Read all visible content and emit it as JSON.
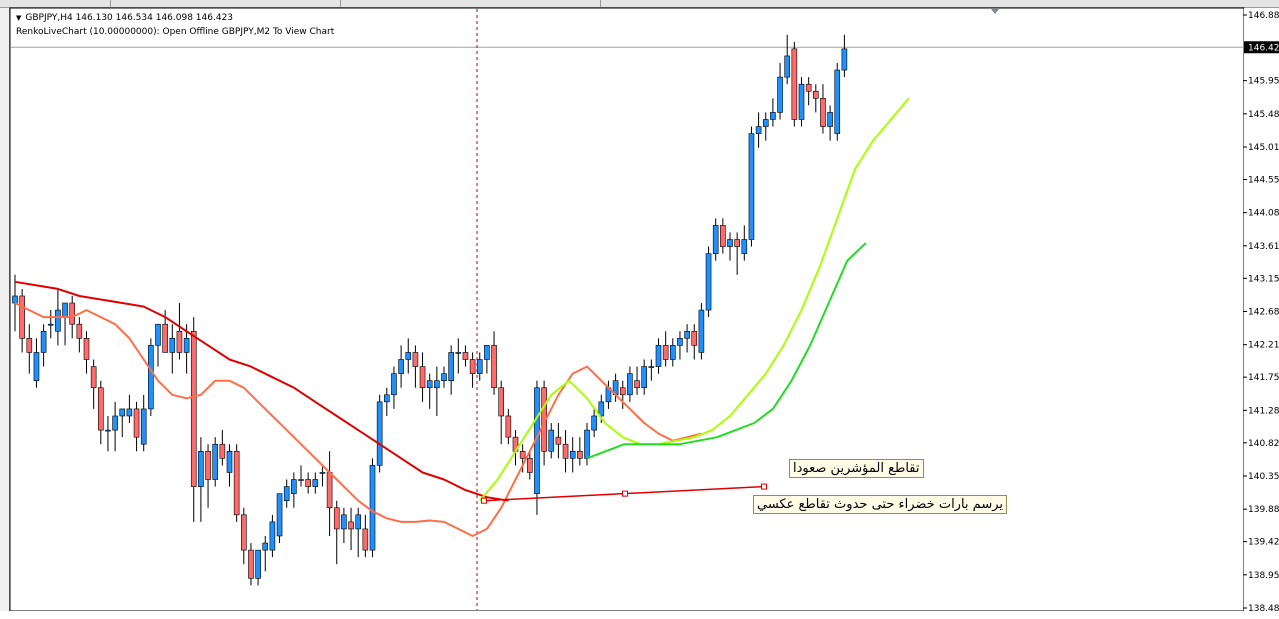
{
  "header": {
    "line1": "GBPJPY,H4  146.130 146.534 146.098 146.423",
    "line2": "RenkoLiveChart (10.00000000): Open Offline GBPJPY,M2 To View Chart"
  },
  "annotations": {
    "crossover_up": "تقاطع المؤشرين صعودا",
    "draw_green": "يرسم بارات خضراء حتى حدوث تقاطع عكسي"
  },
  "current_price": "146.423",
  "colors": {
    "bull_candle": "#1e90ff",
    "bear_candle": "#ff6b6b",
    "ma_fast": "#ff6e4a",
    "ma_slow": "#e00000",
    "ma_lime": "#aaff00",
    "ma_green": "#22dd22",
    "trendline": "#e00000",
    "vline": "#cc0000"
  },
  "chart_data": {
    "type": "candlestick",
    "symbol": "GBPJPY",
    "timeframe": "H4",
    "ylim": [
      138.48,
      146.88
    ],
    "y_ticks": [
      "146.880",
      "146.423",
      "145.950",
      "145.480",
      "145.010",
      "144.550",
      "144.080",
      "143.610",
      "143.150",
      "142.680",
      "142.210",
      "141.750",
      "141.280",
      "140.820",
      "140.350",
      "139.880",
      "139.420",
      "138.950",
      "138.480"
    ],
    "candles": [
      {
        "o": 142.8,
        "h": 143.2,
        "l": 142.4,
        "c": 142.9
      },
      {
        "o": 142.9,
        "h": 143.0,
        "l": 142.1,
        "c": 142.3
      },
      {
        "o": 142.3,
        "h": 142.5,
        "l": 141.8,
        "c": 142.1
      },
      {
        "o": 141.7,
        "h": 142.3,
        "l": 141.6,
        "c": 142.1
      },
      {
        "o": 142.1,
        "h": 142.5,
        "l": 141.9,
        "c": 142.4
      },
      {
        "o": 142.5,
        "h": 142.7,
        "l": 142.3,
        "c": 142.5
      },
      {
        "o": 142.4,
        "h": 143.0,
        "l": 142.2,
        "c": 142.7
      },
      {
        "o": 142.6,
        "h": 142.8,
        "l": 142.2,
        "c": 142.8
      },
      {
        "o": 142.8,
        "h": 142.9,
        "l": 142.3,
        "c": 142.5
      },
      {
        "o": 142.5,
        "h": 142.6,
        "l": 142.1,
        "c": 142.3
      },
      {
        "o": 142.3,
        "h": 142.4,
        "l": 141.8,
        "c": 142.0
      },
      {
        "o": 141.9,
        "h": 142.0,
        "l": 141.3,
        "c": 141.6
      },
      {
        "o": 141.6,
        "h": 141.7,
        "l": 140.8,
        "c": 141.0
      },
      {
        "o": 141.0,
        "h": 141.2,
        "l": 140.7,
        "c": 141.0
      },
      {
        "o": 141.0,
        "h": 141.4,
        "l": 140.7,
        "c": 141.2
      },
      {
        "o": 141.2,
        "h": 141.3,
        "l": 140.9,
        "c": 141.3
      },
      {
        "o": 141.2,
        "h": 141.5,
        "l": 141.1,
        "c": 141.3
      },
      {
        "o": 141.3,
        "h": 141.4,
        "l": 140.7,
        "c": 140.9
      },
      {
        "o": 140.8,
        "h": 141.5,
        "l": 140.7,
        "c": 141.3
      },
      {
        "o": 141.3,
        "h": 142.3,
        "l": 141.2,
        "c": 142.2
      },
      {
        "o": 142.2,
        "h": 142.5,
        "l": 141.9,
        "c": 142.5
      },
      {
        "o": 142.5,
        "h": 142.7,
        "l": 142.1,
        "c": 142.1
      },
      {
        "o": 142.1,
        "h": 142.5,
        "l": 141.8,
        "c": 142.3
      },
      {
        "o": 142.4,
        "h": 142.8,
        "l": 142.0,
        "c": 142.1
      },
      {
        "o": 142.1,
        "h": 142.5,
        "l": 141.8,
        "c": 142.3
      },
      {
        "o": 142.4,
        "h": 142.6,
        "l": 139.7,
        "c": 140.2
      },
      {
        "o": 140.2,
        "h": 140.9,
        "l": 139.7,
        "c": 140.7
      },
      {
        "o": 140.7,
        "h": 140.8,
        "l": 139.9,
        "c": 140.3
      },
      {
        "o": 140.3,
        "h": 140.9,
        "l": 140.2,
        "c": 140.8
      },
      {
        "o": 140.8,
        "h": 141.0,
        "l": 140.5,
        "c": 140.6
      },
      {
        "o": 140.4,
        "h": 140.8,
        "l": 140.2,
        "c": 140.7
      },
      {
        "o": 140.7,
        "h": 140.8,
        "l": 139.7,
        "c": 139.8
      },
      {
        "o": 139.8,
        "h": 139.9,
        "l": 139.1,
        "c": 139.3
      },
      {
        "o": 139.3,
        "h": 139.4,
        "l": 138.8,
        "c": 138.9
      },
      {
        "o": 138.9,
        "h": 139.3,
        "l": 138.8,
        "c": 139.3
      },
      {
        "o": 139.3,
        "h": 139.5,
        "l": 139.0,
        "c": 139.4
      },
      {
        "o": 139.3,
        "h": 139.8,
        "l": 139.2,
        "c": 139.7
      },
      {
        "o": 139.5,
        "h": 140.1,
        "l": 139.4,
        "c": 140.1
      },
      {
        "o": 140.0,
        "h": 140.3,
        "l": 139.9,
        "c": 140.2
      },
      {
        "o": 140.1,
        "h": 140.4,
        "l": 139.9,
        "c": 140.3
      },
      {
        "o": 140.3,
        "h": 140.5,
        "l": 140.2,
        "c": 140.3
      },
      {
        "o": 140.3,
        "h": 140.4,
        "l": 140.1,
        "c": 140.2
      },
      {
        "o": 140.2,
        "h": 140.4,
        "l": 140.1,
        "c": 140.3
      },
      {
        "o": 140.4,
        "h": 140.5,
        "l": 140.2,
        "c": 140.4
      },
      {
        "o": 140.4,
        "h": 140.7,
        "l": 139.5,
        "c": 139.9
      },
      {
        "o": 139.9,
        "h": 140.0,
        "l": 139.1,
        "c": 139.6
      },
      {
        "o": 139.6,
        "h": 139.9,
        "l": 139.4,
        "c": 139.8
      },
      {
        "o": 139.7,
        "h": 139.9,
        "l": 139.3,
        "c": 139.6
      },
      {
        "o": 139.6,
        "h": 139.9,
        "l": 139.2,
        "c": 139.8
      },
      {
        "o": 139.6,
        "h": 139.8,
        "l": 139.2,
        "c": 139.3
      },
      {
        "o": 139.3,
        "h": 140.6,
        "l": 139.2,
        "c": 140.5
      },
      {
        "o": 140.5,
        "h": 141.5,
        "l": 140.4,
        "c": 141.4
      },
      {
        "o": 141.4,
        "h": 141.6,
        "l": 141.2,
        "c": 141.5
      },
      {
        "o": 141.5,
        "h": 141.9,
        "l": 141.3,
        "c": 141.8
      },
      {
        "o": 141.8,
        "h": 142.2,
        "l": 141.6,
        "c": 142.0
      },
      {
        "o": 142.0,
        "h": 142.3,
        "l": 141.8,
        "c": 142.1
      },
      {
        "o": 142.1,
        "h": 142.2,
        "l": 141.6,
        "c": 141.9
      },
      {
        "o": 141.9,
        "h": 142.1,
        "l": 141.4,
        "c": 141.6
      },
      {
        "o": 141.6,
        "h": 141.8,
        "l": 141.3,
        "c": 141.7
      },
      {
        "o": 141.6,
        "h": 141.9,
        "l": 141.2,
        "c": 141.7
      },
      {
        "o": 141.7,
        "h": 141.9,
        "l": 141.6,
        "c": 141.8
      },
      {
        "o": 141.7,
        "h": 142.2,
        "l": 141.5,
        "c": 142.1
      },
      {
        "o": 142.1,
        "h": 142.3,
        "l": 141.8,
        "c": 142.1
      },
      {
        "o": 142.1,
        "h": 142.2,
        "l": 141.9,
        "c": 142.0
      },
      {
        "o": 142.0,
        "h": 142.1,
        "l": 141.6,
        "c": 141.8
      },
      {
        "o": 141.8,
        "h": 142.1,
        "l": 141.7,
        "c": 142.0
      },
      {
        "o": 142.0,
        "h": 142.2,
        "l": 141.8,
        "c": 142.2
      },
      {
        "o": 142.2,
        "h": 142.4,
        "l": 141.5,
        "c": 141.6
      },
      {
        "o": 141.6,
        "h": 141.7,
        "l": 140.8,
        "c": 141.2
      },
      {
        "o": 141.2,
        "h": 141.3,
        "l": 140.8,
        "c": 140.9
      },
      {
        "o": 140.9,
        "h": 141.0,
        "l": 140.5,
        "c": 140.7
      },
      {
        "o": 140.7,
        "h": 140.8,
        "l": 140.4,
        "c": 140.6
      },
      {
        "o": 140.6,
        "h": 140.7,
        "l": 140.3,
        "c": 140.4
      },
      {
        "o": 140.1,
        "h": 141.7,
        "l": 139.8,
        "c": 141.6
      },
      {
        "o": 141.6,
        "h": 141.7,
        "l": 140.5,
        "c": 140.7
      },
      {
        "o": 140.7,
        "h": 141.1,
        "l": 140.6,
        "c": 141.0
      },
      {
        "o": 140.9,
        "h": 141.1,
        "l": 140.6,
        "c": 140.8
      },
      {
        "o": 140.8,
        "h": 141.0,
        "l": 140.4,
        "c": 140.6
      },
      {
        "o": 140.6,
        "h": 140.9,
        "l": 140.4,
        "c": 140.7
      },
      {
        "o": 140.7,
        "h": 140.9,
        "l": 140.5,
        "c": 140.6
      },
      {
        "o": 140.6,
        "h": 141.1,
        "l": 140.5,
        "c": 141.0
      },
      {
        "o": 141.0,
        "h": 141.3,
        "l": 140.9,
        "c": 141.2
      },
      {
        "o": 141.2,
        "h": 141.5,
        "l": 141.1,
        "c": 141.4
      },
      {
        "o": 141.4,
        "h": 141.7,
        "l": 141.3,
        "c": 141.6
      },
      {
        "o": 141.5,
        "h": 141.8,
        "l": 141.4,
        "c": 141.7
      },
      {
        "o": 141.6,
        "h": 141.7,
        "l": 141.3,
        "c": 141.5
      },
      {
        "o": 141.5,
        "h": 141.9,
        "l": 141.4,
        "c": 141.8
      },
      {
        "o": 141.7,
        "h": 141.9,
        "l": 141.5,
        "c": 141.6
      },
      {
        "o": 141.6,
        "h": 142.0,
        "l": 141.5,
        "c": 141.9
      },
      {
        "o": 141.9,
        "h": 142.0,
        "l": 141.7,
        "c": 141.9
      },
      {
        "o": 141.9,
        "h": 142.3,
        "l": 141.8,
        "c": 142.2
      },
      {
        "o": 142.2,
        "h": 142.4,
        "l": 141.9,
        "c": 142.0
      },
      {
        "o": 142.0,
        "h": 142.3,
        "l": 141.9,
        "c": 142.2
      },
      {
        "o": 142.2,
        "h": 142.4,
        "l": 142.0,
        "c": 142.3
      },
      {
        "o": 142.3,
        "h": 142.5,
        "l": 142.1,
        "c": 142.4
      },
      {
        "o": 142.4,
        "h": 142.5,
        "l": 142.0,
        "c": 142.2
      },
      {
        "o": 142.1,
        "h": 142.8,
        "l": 142.0,
        "c": 142.7
      },
      {
        "o": 142.7,
        "h": 143.6,
        "l": 142.6,
        "c": 143.5
      },
      {
        "o": 143.5,
        "h": 144.0,
        "l": 143.4,
        "c": 143.9
      },
      {
        "o": 143.9,
        "h": 144.0,
        "l": 143.5,
        "c": 143.6
      },
      {
        "o": 143.6,
        "h": 143.8,
        "l": 143.4,
        "c": 143.7
      },
      {
        "o": 143.7,
        "h": 143.8,
        "l": 143.2,
        "c": 143.6
      },
      {
        "o": 143.5,
        "h": 143.9,
        "l": 143.4,
        "c": 143.7
      },
      {
        "o": 143.7,
        "h": 145.3,
        "l": 143.6,
        "c": 145.2
      },
      {
        "o": 145.2,
        "h": 145.5,
        "l": 145.0,
        "c": 145.3
      },
      {
        "o": 145.3,
        "h": 145.5,
        "l": 145.1,
        "c": 145.4
      },
      {
        "o": 145.4,
        "h": 145.7,
        "l": 145.3,
        "c": 145.5
      },
      {
        "o": 145.5,
        "h": 146.2,
        "l": 145.4,
        "c": 146.0
      },
      {
        "o": 146.0,
        "h": 146.6,
        "l": 145.9,
        "c": 146.3
      },
      {
        "o": 146.4,
        "h": 146.5,
        "l": 145.3,
        "c": 145.4
      },
      {
        "o": 145.4,
        "h": 146.0,
        "l": 145.3,
        "c": 145.9
      },
      {
        "o": 145.9,
        "h": 146.0,
        "l": 145.6,
        "c": 145.8
      },
      {
        "o": 145.8,
        "h": 145.9,
        "l": 145.5,
        "c": 145.7
      },
      {
        "o": 145.7,
        "h": 145.9,
        "l": 145.2,
        "c": 145.3
      },
      {
        "o": 145.3,
        "h": 145.6,
        "l": 145.1,
        "c": 145.5
      },
      {
        "o": 145.2,
        "h": 146.2,
        "l": 145.1,
        "c": 146.1
      },
      {
        "o": 146.1,
        "h": 146.6,
        "l": 146.0,
        "c": 146.4
      }
    ],
    "ma_fast": [
      142.8,
      142.7,
      142.6,
      142.6,
      142.6,
      142.7,
      142.6,
      142.5,
      142.3,
      142.0,
      141.7,
      141.5,
      141.45,
      141.5,
      141.7,
      141.7,
      141.6,
      141.4,
      141.2,
      141.0,
      140.8,
      140.6,
      140.4,
      140.2,
      140.0,
      139.85,
      139.75,
      139.7,
      139.7,
      139.72,
      139.7,
      139.6,
      139.5,
      139.6,
      139.9,
      140.3,
      140.7,
      141.1,
      141.5,
      141.8,
      141.9,
      141.7,
      141.5,
      141.3,
      141.1,
      140.95,
      140.85,
      140.9,
      140.95
    ],
    "ma_slow": [
      143.1,
      143.05,
      143.0,
      142.9,
      142.85,
      142.8,
      142.75,
      142.6,
      142.4,
      142.2,
      142.0,
      141.9,
      141.75,
      141.6,
      141.4,
      141.2,
      141.0,
      140.8,
      140.6,
      140.4,
      140.3,
      140.15,
      140.05,
      140.0
    ],
    "ma_lime": [
      140.0,
      140.3,
      140.7,
      141.1,
      141.5,
      141.7,
      141.45,
      141.1,
      140.9,
      140.8,
      140.8,
      140.85,
      140.9,
      141.0,
      141.2,
      141.5,
      141.8,
      142.2,
      142.7,
      143.3,
      144.0,
      144.7,
      145.1,
      145.4,
      145.7
    ],
    "ma_green": [
      140.6,
      140.7,
      140.8,
      140.8,
      140.8,
      140.8,
      140.85,
      140.9,
      141.0,
      141.1,
      141.3,
      141.7,
      142.2,
      142.8,
      143.4,
      143.65
    ],
    "trendline": {
      "x1": 59,
      "y1": 140.0,
      "x2": 88,
      "y2": 140.2
    }
  }
}
